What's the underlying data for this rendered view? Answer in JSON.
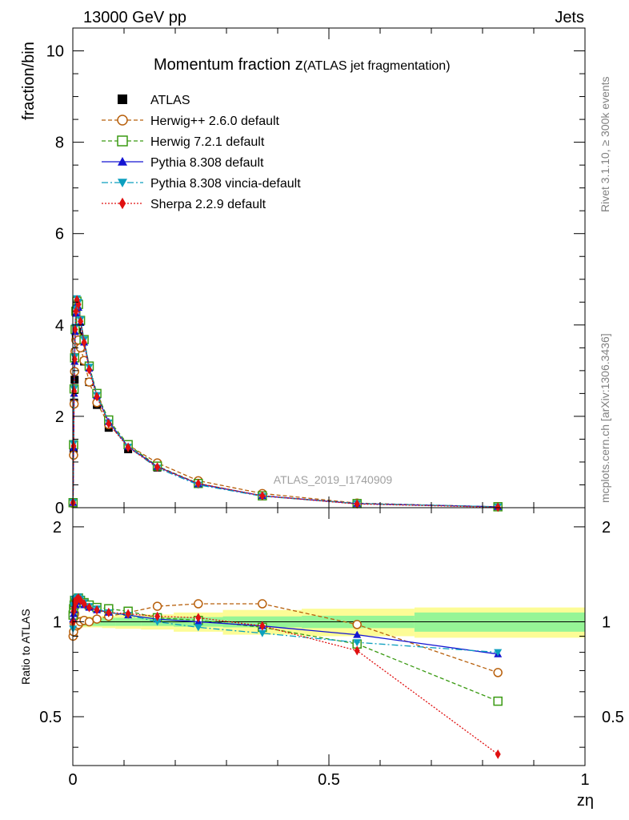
{
  "header": {
    "left": "13000 GeV pp",
    "right": "Jets"
  },
  "side_labels": {
    "rivet": "Rivet 3.1.10, ≥ 300k events",
    "mcplots": "mcplots.cern.ch [arXiv:1306.3436]"
  },
  "chart_data": [
    {
      "type": "scatter",
      "title": "Momentum fraction z",
      "subtitle": "(ATLAS jet fragmentation)",
      "analysis": "ATLAS_2019_I1740909",
      "ylabel": "fraction/bin",
      "xlabel": "zη",
      "xlim": [
        0,
        1
      ],
      "ylim": [
        0,
        10.5
      ],
      "yticks": [
        0,
        2,
        4,
        6,
        8,
        10
      ],
      "xticks": [
        0,
        0.5,
        1
      ],
      "legend_position": "top-left",
      "series": [
        {
          "name": "ATLAS",
          "color": "#000000",
          "marker": "square-filled",
          "x": [
            0.0005,
            0.0015,
            0.0025,
            0.0035,
            0.0045,
            0.006,
            0.008,
            0.011,
            0.015,
            0.022,
            0.032,
            0.047,
            0.07,
            0.108,
            0.165,
            0.245,
            0.37,
            0.555,
            0.83
          ],
          "y": [
            0.1,
            1.25,
            2.3,
            2.8,
            3.4,
            3.75,
            3.85,
            3.75,
            3.5,
            3.2,
            2.75,
            2.25,
            1.75,
            1.28,
            0.88,
            0.52,
            0.27,
            0.1,
            0.03
          ]
        },
        {
          "name": "Herwig++ 2.6.0 default",
          "color": "#b8600c",
          "marker": "circle-open",
          "dash": "5,3",
          "x": [
            0.0005,
            0.0015,
            0.0025,
            0.0035,
            0.0045,
            0.006,
            0.008,
            0.011,
            0.015,
            0.022,
            0.032,
            0.047,
            0.07,
            0.108,
            0.165,
            0.245,
            0.37,
            0.555,
            0.83
          ],
          "y": [
            0.09,
            1.15,
            2.27,
            2.98,
            3.42,
            3.67,
            3.75,
            3.67,
            3.5,
            3.22,
            2.75,
            2.3,
            1.82,
            1.37,
            0.98,
            0.59,
            0.31,
            0.1,
            0.02
          ]
        },
        {
          "name": "Herwig 7.2.1 default",
          "color": "#3a9a12",
          "marker": "square-open",
          "dash": "5,3",
          "x": [
            0.0005,
            0.0015,
            0.0025,
            0.0035,
            0.0045,
            0.006,
            0.008,
            0.011,
            0.015,
            0.022,
            0.032,
            0.047,
            0.07,
            0.108,
            0.165,
            0.245,
            0.37,
            0.555,
            0.83
          ],
          "y": [
            0.11,
            1.38,
            2.6,
            3.28,
            3.9,
            4.3,
            4.52,
            4.45,
            4.1,
            3.68,
            3.1,
            2.5,
            1.92,
            1.38,
            0.91,
            0.53,
            0.26,
            0.09,
            0.02
          ]
        },
        {
          "name": "Pythia 8.308 default",
          "color": "#1414d2",
          "marker": "triangle-up-filled",
          "x": [
            0.0005,
            0.0015,
            0.0025,
            0.0035,
            0.0045,
            0.006,
            0.008,
            0.011,
            0.015,
            0.022,
            0.032,
            0.047,
            0.07,
            0.108,
            0.165,
            0.245,
            0.37,
            0.555,
            0.83
          ],
          "y": [
            0.11,
            1.32,
            2.5,
            3.2,
            3.85,
            4.25,
            4.45,
            4.38,
            4.05,
            3.62,
            3.05,
            2.45,
            1.88,
            1.34,
            0.9,
            0.52,
            0.26,
            0.09,
            0.02
          ]
        },
        {
          "name": "Pythia 8.308 vincia-default",
          "color": "#0c9fbf",
          "marker": "triangle-down-filled",
          "dash": "8,3,2,3",
          "x": [
            0.0005,
            0.0015,
            0.0025,
            0.0035,
            0.0045,
            0.006,
            0.008,
            0.011,
            0.015,
            0.022,
            0.032,
            0.047,
            0.07,
            0.108,
            0.165,
            0.245,
            0.37,
            0.555,
            0.83
          ],
          "y": [
            0.12,
            1.4,
            2.6,
            3.3,
            3.95,
            4.35,
            4.58,
            4.5,
            4.12,
            3.68,
            3.08,
            2.46,
            1.86,
            1.33,
            0.87,
            0.5,
            0.25,
            0.09,
            0.02
          ]
        },
        {
          "name": "Sherpa 2.2.9 default",
          "color": "#e01010",
          "marker": "diamond-filled",
          "dash": "2,2",
          "x": [
            0.0005,
            0.0015,
            0.0025,
            0.0035,
            0.0045,
            0.006,
            0.008,
            0.011,
            0.015,
            0.022,
            0.032,
            0.047,
            0.07,
            0.108,
            0.165,
            0.245,
            0.37,
            0.555,
            0.83
          ],
          "y": [
            0.11,
            1.35,
            2.55,
            3.25,
            3.9,
            4.3,
            4.55,
            4.45,
            4.08,
            3.62,
            3.02,
            2.43,
            1.84,
            1.32,
            0.89,
            0.53,
            0.26,
            0.08,
            0.01
          ]
        }
      ]
    },
    {
      "type": "line",
      "ylabel": "Ratio to ATLAS",
      "xlabel": "zη",
      "xlim": [
        0,
        1
      ],
      "ylim": [
        0.35,
        2.3
      ],
      "yticks": [
        0.5,
        1,
        2
      ],
      "xticks": [
        0,
        0.5,
        1
      ],
      "uncertainty_bands": {
        "edges": [
          0,
          0.001,
          0.002,
          0.003,
          0.004,
          0.005,
          0.007,
          0.009,
          0.013,
          0.017,
          0.027,
          0.037,
          0.057,
          0.083,
          0.133,
          0.197,
          0.293,
          0.447,
          0.667,
          1
        ],
        "inner": [
          0.05,
          0.04,
          0.03,
          0.03,
          0.03,
          0.03,
          0.03,
          0.03,
          0.03,
          0.03,
          0.03,
          0.03,
          0.03,
          0.03,
          0.03,
          0.035,
          0.04,
          0.045,
          0.07
        ],
        "outer": [
          0.07,
          0.05,
          0.04,
          0.04,
          0.04,
          0.04,
          0.04,
          0.04,
          0.04,
          0.04,
          0.04,
          0.04,
          0.045,
          0.05,
          0.055,
          0.07,
          0.09,
          0.1,
          0.11
        ],
        "inner_color": "#96f596",
        "outer_color": "#fcfc96"
      },
      "series": [
        {
          "name": "Herwig++ 2.6.0 default",
          "color": "#b8600c",
          "marker": "circle-open",
          "dash": "5,3",
          "x": [
            0.0005,
            0.0015,
            0.0025,
            0.0035,
            0.0045,
            0.006,
            0.008,
            0.011,
            0.015,
            0.022,
            0.032,
            0.047,
            0.07,
            0.108,
            0.165,
            0.245,
            0.37,
            0.555,
            0.83
          ],
          "y": [
            0.9,
            0.93,
            0.99,
            1.06,
            1.01,
            0.98,
            0.97,
            0.98,
            1.0,
            1.01,
            1.0,
            1.02,
            1.04,
            1.07,
            1.12,
            1.14,
            1.14,
            0.98,
            0.69
          ]
        },
        {
          "name": "Herwig 7.2.1 default",
          "color": "#3a9a12",
          "marker": "square-open",
          "dash": "5,3",
          "x": [
            0.0005,
            0.0015,
            0.0025,
            0.0035,
            0.0045,
            0.006,
            0.008,
            0.011,
            0.015,
            0.022,
            0.032,
            0.047,
            0.07,
            0.108,
            0.165,
            0.245,
            0.37,
            0.555,
            0.83
          ],
          "y": [
            1.05,
            1.1,
            1.13,
            1.17,
            1.15,
            1.15,
            1.17,
            1.19,
            1.17,
            1.15,
            1.13,
            1.11,
            1.1,
            1.08,
            1.03,
            1.01,
            0.96,
            0.85,
            0.56
          ]
        },
        {
          "name": "Pythia 8.308 default",
          "color": "#1414d2",
          "marker": "triangle-up-filled",
          "x": [
            0.0005,
            0.0015,
            0.0025,
            0.0035,
            0.0045,
            0.006,
            0.008,
            0.011,
            0.015,
            0.022,
            0.032,
            0.047,
            0.07,
            0.108,
            0.165,
            0.245,
            0.37,
            0.555,
            0.83
          ],
          "y": [
            1.02,
            1.06,
            1.09,
            1.14,
            1.13,
            1.13,
            1.16,
            1.17,
            1.16,
            1.13,
            1.11,
            1.09,
            1.07,
            1.05,
            1.02,
            1.0,
            0.97,
            0.91,
            0.79
          ]
        },
        {
          "name": "Pythia 8.308 vincia-default",
          "color": "#0c9fbf",
          "marker": "triangle-down-filled",
          "dash": "8,3,2,3",
          "x": [
            0.0005,
            0.0015,
            0.0025,
            0.0035,
            0.0045,
            0.006,
            0.008,
            0.011,
            0.015,
            0.022,
            0.032,
            0.047,
            0.07,
            0.108,
            0.165,
            0.245,
            0.37,
            0.555,
            0.83
          ],
          "y": [
            0.95,
            1.12,
            1.13,
            1.18,
            1.16,
            1.16,
            1.19,
            1.2,
            1.18,
            1.15,
            1.12,
            1.1,
            1.07,
            1.05,
            1.0,
            0.96,
            0.92,
            0.86,
            0.8
          ]
        },
        {
          "name": "Sherpa 2.2.9 default",
          "color": "#e01010",
          "marker": "diamond-filled",
          "dash": "2,2",
          "x": [
            0.0005,
            0.0015,
            0.0025,
            0.0035,
            0.0045,
            0.006,
            0.008,
            0.011,
            0.015,
            0.022,
            0.032,
            0.047,
            0.07,
            0.108,
            0.165,
            0.245,
            0.37,
            0.555,
            0.83
          ],
          "y": [
            1.0,
            1.08,
            1.11,
            1.16,
            1.15,
            1.15,
            1.18,
            1.19,
            1.17,
            1.14,
            1.11,
            1.09,
            1.07,
            1.06,
            1.04,
            1.03,
            0.97,
            0.81,
            0.38
          ]
        }
      ]
    }
  ]
}
